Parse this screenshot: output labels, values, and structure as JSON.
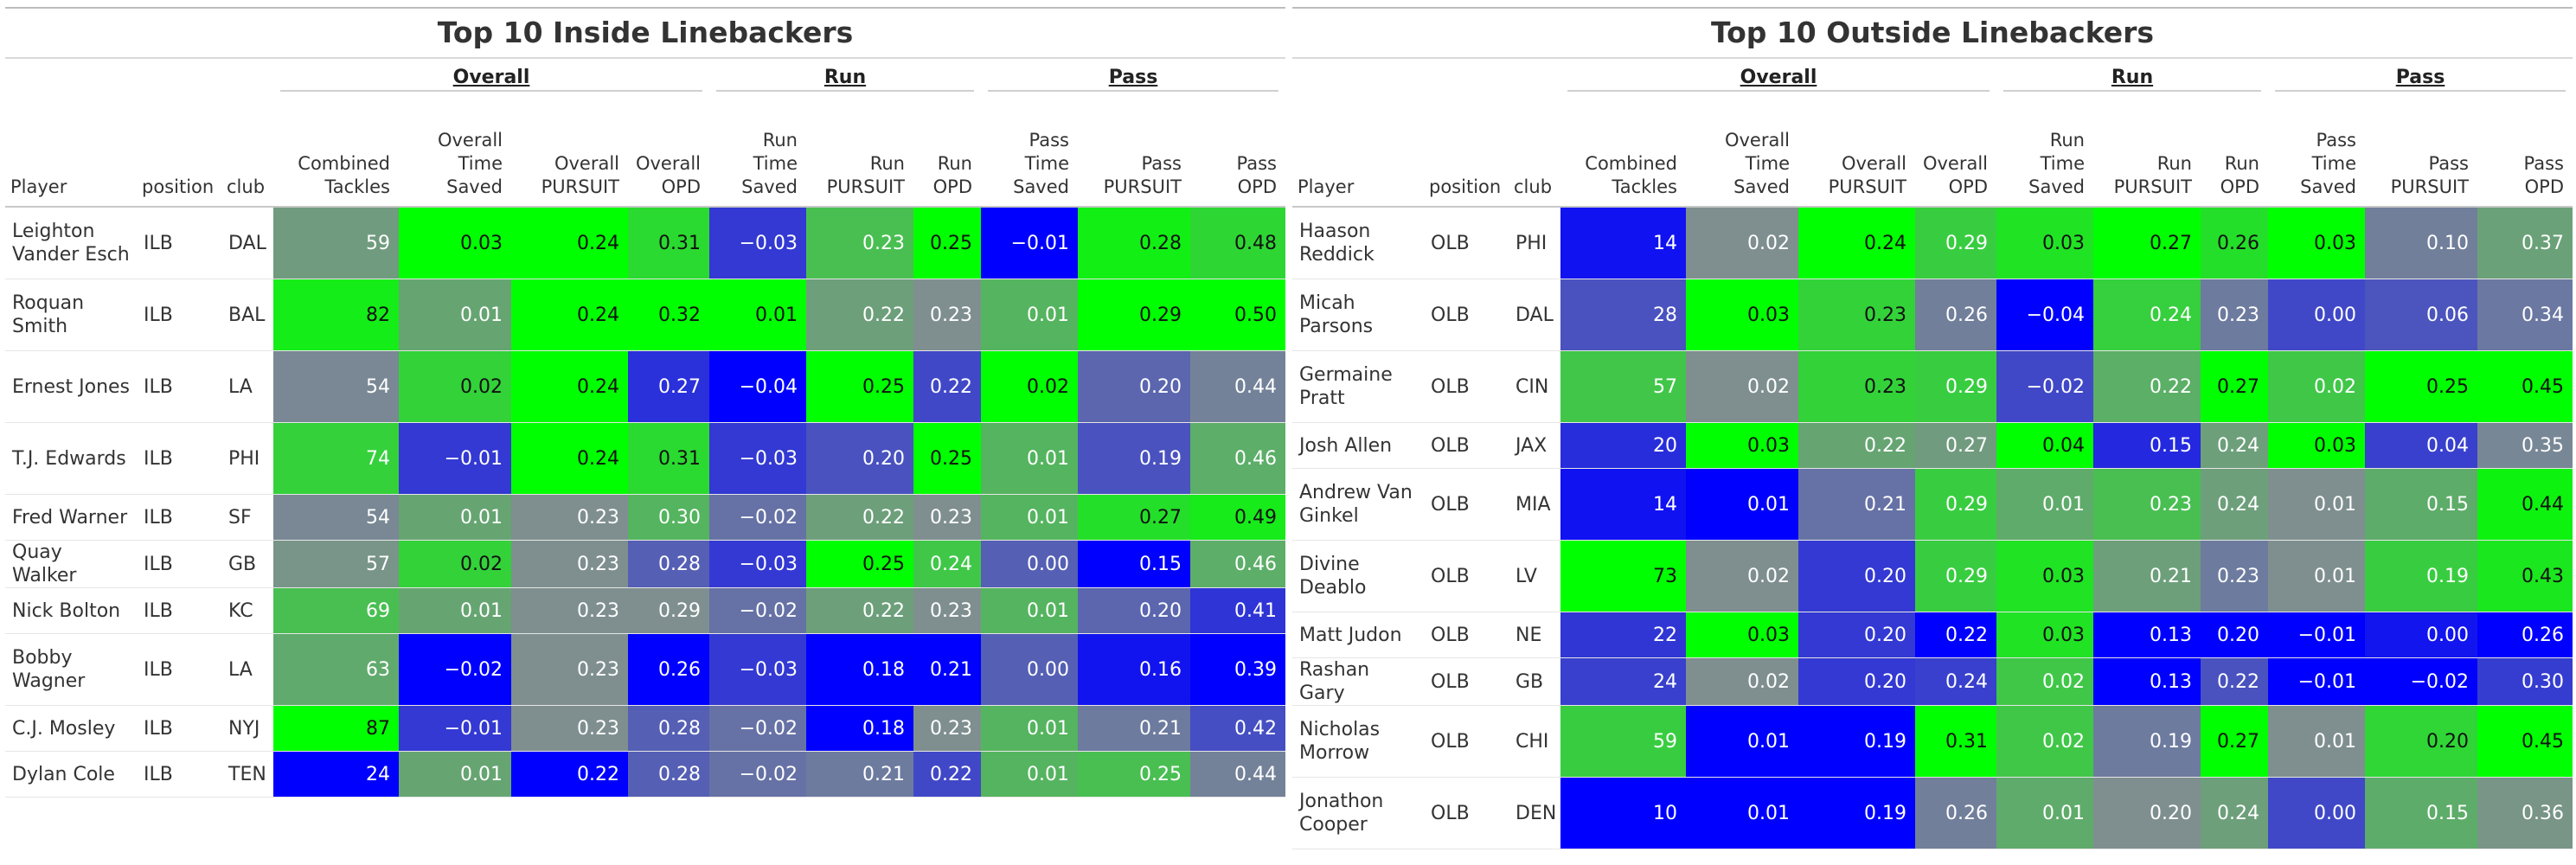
{
  "colors": {
    "scale_low": "#0000ff",
    "scale_mid": "#7f8f8f",
    "scale_high": "#00ff00",
    "header_text": "#333333"
  },
  "inside": {
    "title": "Top 10 Inside Linebackers",
    "spanners": {
      "overall": "Overall",
      "run": "Run",
      "pass": "Pass"
    },
    "columns": [
      "Player",
      "position",
      "club",
      "Combined Tackles",
      "Overall Time Saved",
      "Overall PURSUIT",
      "Overall OPD",
      "Run Time Saved",
      "Run PURSUIT",
      "Run OPD",
      "Pass Time Saved",
      "Pass PURSUIT",
      "Pass OPD"
    ],
    "rows": [
      {
        "player": "Leighton Vander Esch",
        "position": "ILB",
        "club": "DAL",
        "stats": [
          "59",
          "0.03",
          "0.24",
          "0.31",
          "−0.03",
          "0.23",
          "0.25",
          "−0.01",
          "0.28",
          "0.48"
        ]
      },
      {
        "player": "Roquan Smith",
        "position": "ILB",
        "club": "BAL",
        "stats": [
          "82",
          "0.01",
          "0.24",
          "0.32",
          "0.01",
          "0.22",
          "0.23",
          "0.01",
          "0.29",
          "0.50"
        ]
      },
      {
        "player": "Ernest Jones",
        "position": "ILB",
        "club": "LA",
        "stats": [
          "54",
          "0.02",
          "0.24",
          "0.27",
          "−0.04",
          "0.25",
          "0.22",
          "0.02",
          "0.20",
          "0.44"
        ]
      },
      {
        "player": "T.J. Edwards",
        "position": "ILB",
        "club": "PHI",
        "stats": [
          "74",
          "−0.01",
          "0.24",
          "0.31",
          "−0.03",
          "0.20",
          "0.25",
          "0.01",
          "0.19",
          "0.46"
        ]
      },
      {
        "player": "Fred Warner",
        "position": "ILB",
        "club": "SF",
        "stats": [
          "54",
          "0.01",
          "0.23",
          "0.30",
          "−0.02",
          "0.22",
          "0.23",
          "0.01",
          "0.27",
          "0.49"
        ]
      },
      {
        "player": "Quay Walker",
        "position": "ILB",
        "club": "GB",
        "stats": [
          "57",
          "0.02",
          "0.23",
          "0.28",
          "−0.03",
          "0.25",
          "0.24",
          "0.00",
          "0.15",
          "0.46"
        ]
      },
      {
        "player": "Nick Bolton",
        "position": "ILB",
        "club": "KC",
        "stats": [
          "69",
          "0.01",
          "0.23",
          "0.29",
          "−0.02",
          "0.22",
          "0.23",
          "0.01",
          "0.20",
          "0.41"
        ]
      },
      {
        "player": "Bobby Wagner",
        "position": "ILB",
        "club": "LA",
        "stats": [
          "63",
          "−0.02",
          "0.23",
          "0.26",
          "−0.03",
          "0.18",
          "0.21",
          "0.00",
          "0.16",
          "0.39"
        ]
      },
      {
        "player": "C.J. Mosley",
        "position": "ILB",
        "club": "NYJ",
        "stats": [
          "87",
          "−0.01",
          "0.23",
          "0.28",
          "−0.02",
          "0.18",
          "0.23",
          "0.01",
          "0.21",
          "0.42"
        ]
      },
      {
        "player": "Dylan Cole",
        "position": "ILB",
        "club": "TEN",
        "stats": [
          "24",
          "0.01",
          "0.22",
          "0.28",
          "−0.02",
          "0.21",
          "0.22",
          "0.01",
          "0.25",
          "0.44"
        ]
      }
    ]
  },
  "outside": {
    "title": "Top 10 Outside Linebackers",
    "spanners": {
      "overall": "Overall",
      "run": "Run",
      "pass": "Pass"
    },
    "columns": [
      "Player",
      "position",
      "club",
      "Combined Tackles",
      "Overall Time Saved",
      "Overall PURSUIT",
      "Overall OPD",
      "Run Time Saved",
      "Run PURSUIT",
      "Run OPD",
      "Pass Time Saved",
      "Pass PURSUIT",
      "Pass OPD"
    ],
    "rows": [
      {
        "player": "Haason Reddick",
        "position": "OLB",
        "club": "PHI",
        "stats": [
          "14",
          "0.02",
          "0.24",
          "0.29",
          "0.03",
          "0.27",
          "0.26",
          "0.03",
          "0.10",
          "0.37"
        ]
      },
      {
        "player": "Micah Parsons",
        "position": "OLB",
        "club": "DAL",
        "stats": [
          "28",
          "0.03",
          "0.23",
          "0.26",
          "−0.04",
          "0.24",
          "0.23",
          "0.00",
          "0.06",
          "0.34"
        ]
      },
      {
        "player": "Germaine Pratt",
        "position": "OLB",
        "club": "CIN",
        "stats": [
          "57",
          "0.02",
          "0.23",
          "0.29",
          "−0.02",
          "0.22",
          "0.27",
          "0.02",
          "0.25",
          "0.45"
        ]
      },
      {
        "player": "Josh Allen",
        "position": "OLB",
        "club": "JAX",
        "stats": [
          "20",
          "0.03",
          "0.22",
          "0.27",
          "0.04",
          "0.15",
          "0.24",
          "0.03",
          "0.04",
          "0.35"
        ]
      },
      {
        "player": "Andrew Van Ginkel",
        "position": "OLB",
        "club": "MIA",
        "stats": [
          "14",
          "0.01",
          "0.21",
          "0.29",
          "0.01",
          "0.23",
          "0.24",
          "0.01",
          "0.15",
          "0.44"
        ]
      },
      {
        "player": "Divine Deablo",
        "position": "OLB",
        "club": "LV",
        "stats": [
          "73",
          "0.02",
          "0.20",
          "0.29",
          "0.03",
          "0.21",
          "0.23",
          "0.01",
          "0.19",
          "0.43"
        ]
      },
      {
        "player": "Matt Judon",
        "position": "OLB",
        "club": "NE",
        "stats": [
          "22",
          "0.03",
          "0.20",
          "0.22",
          "0.03",
          "0.13",
          "0.20",
          "−0.01",
          "0.00",
          "0.26"
        ]
      },
      {
        "player": "Rashan Gary",
        "position": "OLB",
        "club": "GB",
        "stats": [
          "24",
          "0.02",
          "0.20",
          "0.24",
          "0.02",
          "0.13",
          "0.22",
          "−0.01",
          "−0.02",
          "0.30"
        ]
      },
      {
        "player": "Nicholas Morrow",
        "position": "OLB",
        "club": "CHI",
        "stats": [
          "59",
          "0.01",
          "0.19",
          "0.31",
          "0.02",
          "0.19",
          "0.27",
          "0.01",
          "0.20",
          "0.45"
        ]
      },
      {
        "player": "Jonathon Cooper",
        "position": "OLB",
        "club": "DEN",
        "stats": [
          "10",
          "0.01",
          "0.19",
          "0.26",
          "0.01",
          "0.20",
          "0.24",
          "0.00",
          "0.15",
          "0.36"
        ]
      }
    ]
  }
}
